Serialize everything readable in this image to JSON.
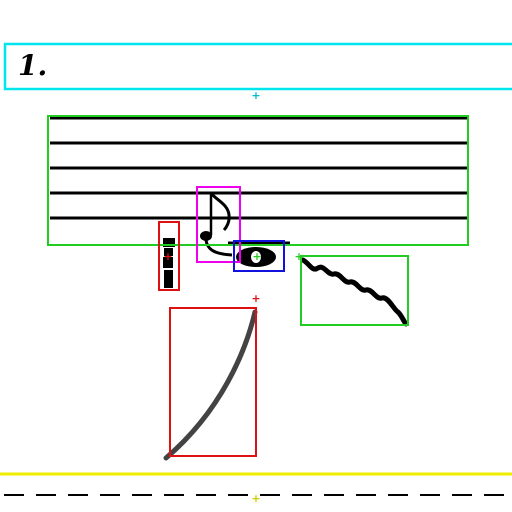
{
  "score": {
    "measure_number": "1."
  },
  "colors": {
    "title_box": "#00e5ee",
    "staff_box": "#22cc22",
    "rest_box": "#dd1111",
    "flag_note_box": "#ee00ee",
    "notehead_box": "#1111dd",
    "trill_box": "#22cc22",
    "slur_box": "#dd1111",
    "page_bottom_line": "#eeee00",
    "ink": "#000000"
  },
  "icons": {
    "eighth_note": "eighth-note-glyph",
    "rest": "rest-glyph",
    "notehead": "whole-notehead-glyph",
    "trill": "trill-wavy-line",
    "slur": "slur-curve"
  }
}
